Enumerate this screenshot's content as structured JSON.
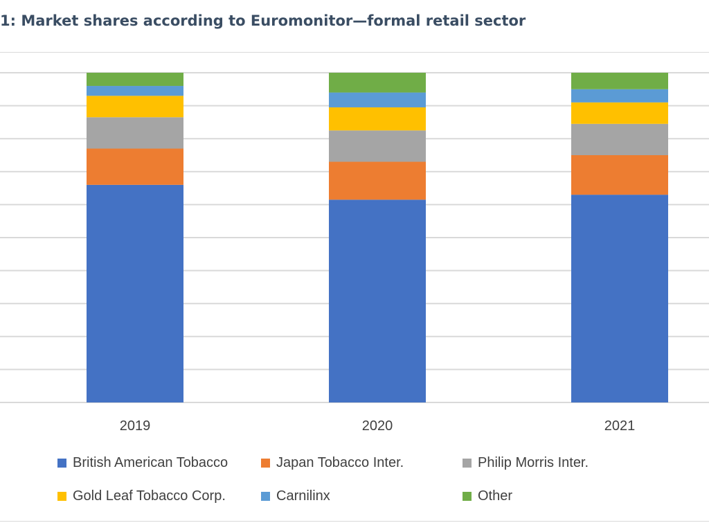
{
  "title": "1: Market shares according to Euromonitor—formal retail sector",
  "chart_data": {
    "type": "bar",
    "stacked": true,
    "normalized": true,
    "categories": [
      "2019",
      "2020",
      "2021"
    ],
    "ylim": [
      0,
      1
    ],
    "grid": true,
    "legend_position": "bottom",
    "series": [
      {
        "name": "British American Tobacco",
        "color": "#4472C4",
        "values": [
          0.66,
          0.615,
          0.63
        ]
      },
      {
        "name": "Japan Tobacco Inter.",
        "color": "#ED7D31",
        "values": [
          0.11,
          0.115,
          0.12
        ]
      },
      {
        "name": "Philip Morris Inter.",
        "color": "#A5A5A5",
        "values": [
          0.095,
          0.095,
          0.095
        ]
      },
      {
        "name": "Gold Leaf Tobacco Corp.",
        "color": "#FFC000",
        "values": [
          0.065,
          0.07,
          0.065
        ]
      },
      {
        "name": "Carnilinx",
        "color": "#5B9BD5",
        "values": [
          0.03,
          0.045,
          0.04
        ]
      },
      {
        "name": "Other",
        "color": "#70AD47",
        "values": [
          0.04,
          0.06,
          0.05
        ]
      }
    ]
  }
}
